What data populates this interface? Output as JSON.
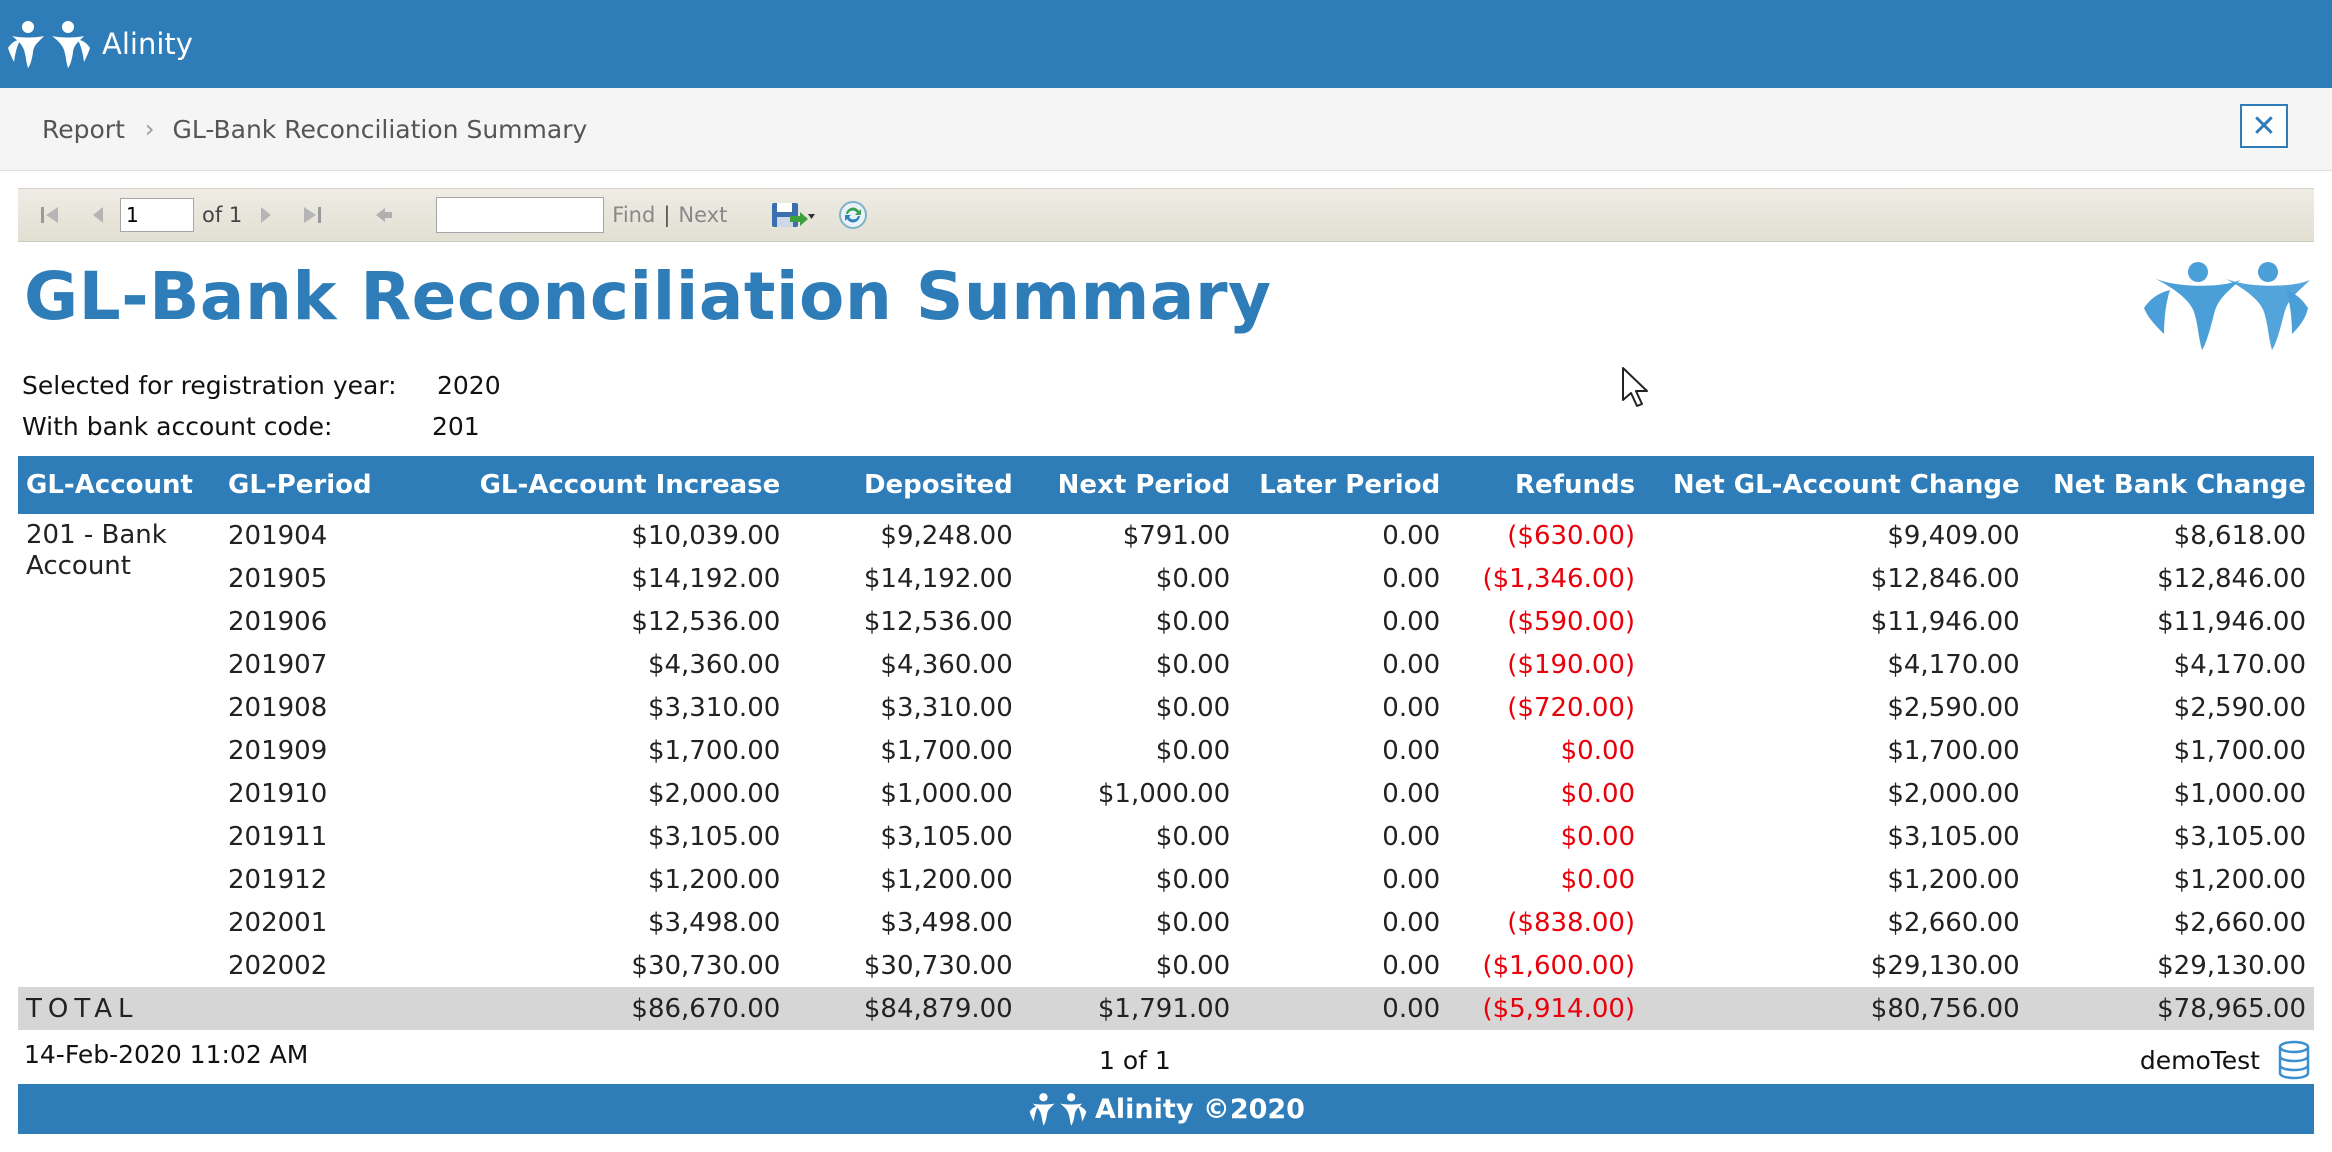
{
  "app": {
    "name": "Alinity"
  },
  "breadcrumb": {
    "root": "Report",
    "current": "GL-Bank Reconciliation Summary"
  },
  "toolbar": {
    "page_value": "1",
    "of_label": "of 1",
    "find_label": "Find",
    "divider": "|",
    "next_label": "Next"
  },
  "report": {
    "title": "GL-Bank Reconciliation Summary",
    "params": [
      {
        "label": "Selected for registration year:",
        "value": "2020"
      },
      {
        "label": "With bank account code:",
        "value": "201"
      }
    ],
    "columns": [
      "GL-Account",
      "GL-Period",
      "GL-Account Increase",
      "Deposited",
      "Next Period",
      "Later Period",
      "Refunds",
      "Net GL-Account Change",
      "Net Bank Change"
    ],
    "account": "201 - Bank Account",
    "rows": [
      {
        "period": "201904",
        "increase": "$10,039.00",
        "deposited": "$9,248.00",
        "next": "$791.00",
        "later": "0.00",
        "refunds": "($630.00)",
        "net_gl": "$9,409.00",
        "net_bank": "$8,618.00"
      },
      {
        "period": "201905",
        "increase": "$14,192.00",
        "deposited": "$14,192.00",
        "next": "$0.00",
        "later": "0.00",
        "refunds": "($1,346.00)",
        "net_gl": "$12,846.00",
        "net_bank": "$12,846.00"
      },
      {
        "period": "201906",
        "increase": "$12,536.00",
        "deposited": "$12,536.00",
        "next": "$0.00",
        "later": "0.00",
        "refunds": "($590.00)",
        "net_gl": "$11,946.00",
        "net_bank": "$11,946.00"
      },
      {
        "period": "201907",
        "increase": "$4,360.00",
        "deposited": "$4,360.00",
        "next": "$0.00",
        "later": "0.00",
        "refunds": "($190.00)",
        "net_gl": "$4,170.00",
        "net_bank": "$4,170.00"
      },
      {
        "period": "201908",
        "increase": "$3,310.00",
        "deposited": "$3,310.00",
        "next": "$0.00",
        "later": "0.00",
        "refunds": "($720.00)",
        "net_gl": "$2,590.00",
        "net_bank": "$2,590.00"
      },
      {
        "period": "201909",
        "increase": "$1,700.00",
        "deposited": "$1,700.00",
        "next": "$0.00",
        "later": "0.00",
        "refunds": "$0.00",
        "net_gl": "$1,700.00",
        "net_bank": "$1,700.00"
      },
      {
        "period": "201910",
        "increase": "$2,000.00",
        "deposited": "$1,000.00",
        "next": "$1,000.00",
        "later": "0.00",
        "refunds": "$0.00",
        "net_gl": "$2,000.00",
        "net_bank": "$1,000.00"
      },
      {
        "period": "201911",
        "increase": "$3,105.00",
        "deposited": "$3,105.00",
        "next": "$0.00",
        "later": "0.00",
        "refunds": "$0.00",
        "net_gl": "$3,105.00",
        "net_bank": "$3,105.00"
      },
      {
        "period": "201912",
        "increase": "$1,200.00",
        "deposited": "$1,200.00",
        "next": "$0.00",
        "later": "0.00",
        "refunds": "$0.00",
        "net_gl": "$1,200.00",
        "net_bank": "$1,200.00"
      },
      {
        "period": "202001",
        "increase": "$3,498.00",
        "deposited": "$3,498.00",
        "next": "$0.00",
        "later": "0.00",
        "refunds": "($838.00)",
        "net_gl": "$2,660.00",
        "net_bank": "$2,660.00"
      },
      {
        "period": "202002",
        "increase": "$30,730.00",
        "deposited": "$30,730.00",
        "next": "$0.00",
        "later": "0.00",
        "refunds": "($1,600.00)",
        "net_gl": "$29,130.00",
        "net_bank": "$29,130.00"
      }
    ],
    "total": {
      "label": "TOTAL",
      "increase": "$86,670.00",
      "deposited": "$84,879.00",
      "next": "$1,791.00",
      "later": "0.00",
      "refunds": "($5,914.00)",
      "net_gl": "$80,756.00",
      "net_bank": "$78,965.00"
    },
    "footer": {
      "timestamp": "14-Feb-2020 11:02 AM",
      "page": "1 of 1",
      "user": "demoTest"
    }
  },
  "bottom_bar": {
    "text": "Alinity ©2020"
  },
  "colors": {
    "brand": "#2e7db8",
    "negative": "#e8000b",
    "total_row": "#d6d6d6",
    "toolbar": "#e8e6dc"
  }
}
